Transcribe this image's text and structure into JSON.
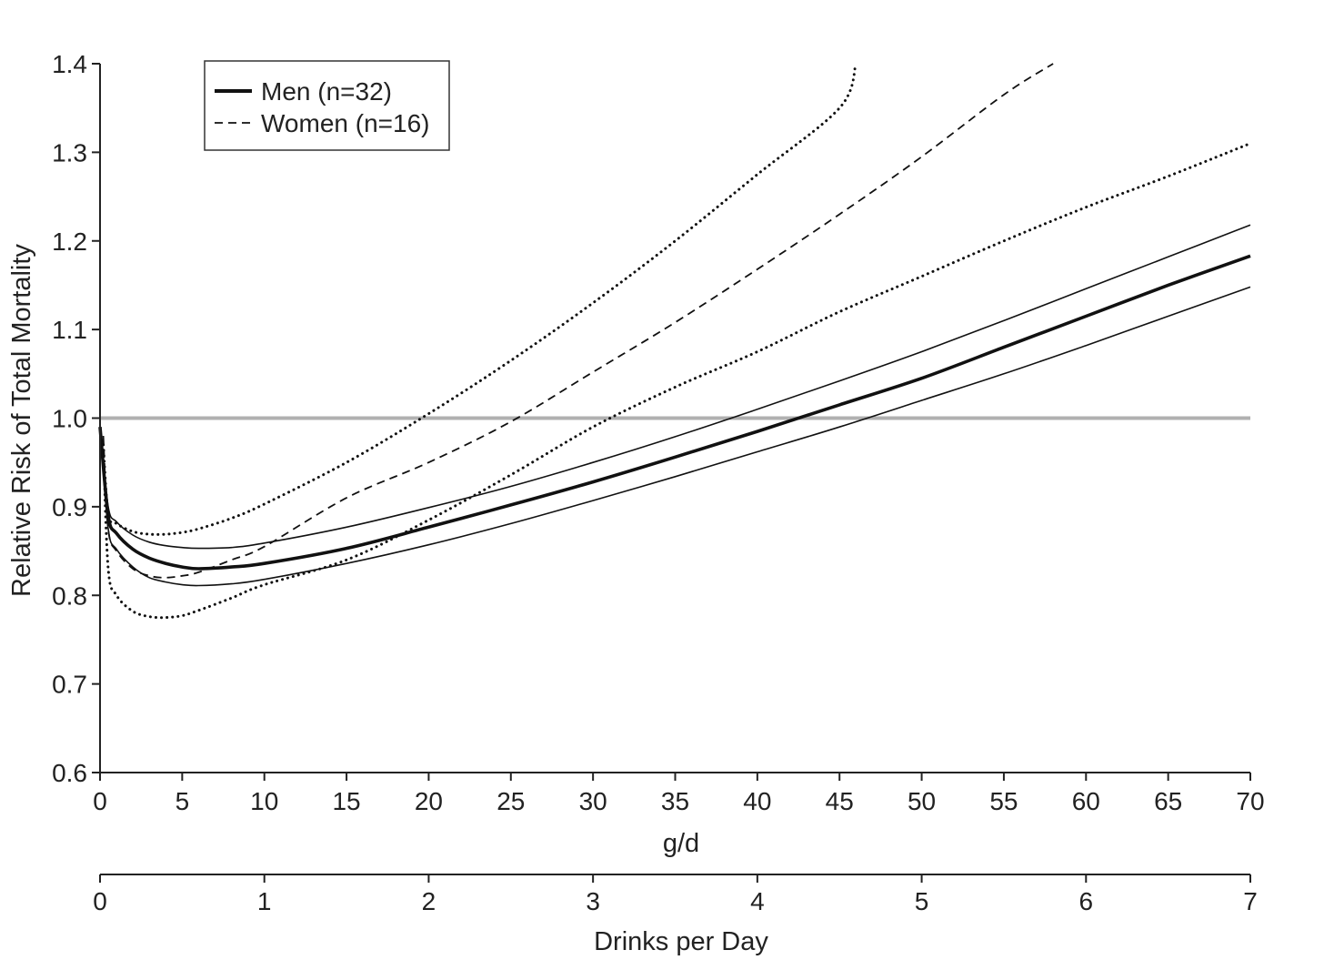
{
  "chart_data": {
    "type": "line",
    "title": "",
    "ylabel": "Relative Risk of Total Mortality",
    "xlabel": "g/d",
    "x2label": "Drinks per Day",
    "xlim": [
      0,
      70
    ],
    "ylim": [
      0.6,
      1.4
    ],
    "xticks": [
      "0",
      "5",
      "10",
      "15",
      "20",
      "25",
      "30",
      "35",
      "40",
      "45",
      "50",
      "55",
      "60",
      "65",
      "70"
    ],
    "yticks": [
      "0.6",
      "0.7",
      "0.8",
      "0.9",
      "1.0",
      "1.1",
      "1.2",
      "1.3",
      "1.4"
    ],
    "x2ticks": [
      "0",
      "1",
      "2",
      "3",
      "4",
      "5",
      "6",
      "7"
    ],
    "reference_line": {
      "y": 1.0,
      "color": "#b0b0b0"
    },
    "legend": {
      "position": "top-left",
      "entries": [
        {
          "label": "Men (n=32)",
          "style": "solid-thick"
        },
        {
          "label": "Women (n=16)",
          "style": "dashed"
        }
      ]
    },
    "series": [
      {
        "name": "Men (n=32)",
        "style": "solid-thick",
        "x": [
          0,
          0.5,
          1,
          2,
          3,
          4,
          5,
          6,
          8,
          10,
          15,
          20,
          25,
          30,
          35,
          40,
          45,
          50,
          55,
          60,
          65,
          70
        ],
        "y": [
          0.99,
          0.89,
          0.87,
          0.852,
          0.842,
          0.836,
          0.832,
          0.83,
          0.832,
          0.836,
          0.853,
          0.877,
          0.902,
          0.928,
          0.956,
          0.985,
          1.015,
          1.045,
          1.08,
          1.115,
          1.15,
          1.183
        ]
      },
      {
        "style": "solid-thin",
        "x": [
          0,
          0.5,
          1,
          2,
          3,
          4,
          5,
          6,
          8,
          10,
          15,
          20,
          25,
          30,
          35,
          40,
          45,
          50,
          55,
          60,
          65,
          70
        ],
        "y": [
          0.99,
          0.9,
          0.883,
          0.868,
          0.86,
          0.856,
          0.854,
          0.853,
          0.854,
          0.859,
          0.877,
          0.899,
          0.923,
          0.95,
          0.979,
          1.01,
          1.042,
          1.075,
          1.11,
          1.146,
          1.182,
          1.218
        ]
      },
      {
        "style": "solid-thin",
        "x": [
          0,
          0.5,
          1,
          2,
          3,
          4,
          5,
          6,
          8,
          10,
          15,
          20,
          25,
          30,
          35,
          40,
          45,
          50,
          55,
          60,
          65,
          70
        ],
        "y": [
          0.99,
          0.875,
          0.852,
          0.832,
          0.82,
          0.815,
          0.812,
          0.811,
          0.813,
          0.818,
          0.836,
          0.857,
          0.881,
          0.907,
          0.934,
          0.962,
          0.99,
          1.02,
          1.05,
          1.082,
          1.115,
          1.148
        ]
      },
      {
        "name": "Women (n=16)",
        "style": "dashed",
        "x": [
          0.2,
          0.5,
          1,
          2,
          3,
          4,
          5,
          6,
          8,
          10,
          15,
          20,
          25,
          30,
          35,
          40,
          45,
          50,
          55,
          58
        ],
        "y": [
          0.98,
          0.875,
          0.85,
          0.83,
          0.822,
          0.82,
          0.822,
          0.826,
          0.84,
          0.855,
          0.91,
          0.95,
          0.996,
          1.052,
          1.108,
          1.168,
          1.23,
          1.295,
          1.365,
          1.4
        ]
      },
      {
        "style": "dotted",
        "x": [
          0.2,
          0.5,
          1,
          2,
          3,
          4,
          5,
          6,
          8,
          10,
          15,
          20,
          25,
          30,
          35,
          40,
          45,
          46
        ],
        "y": [
          0.97,
          0.892,
          0.881,
          0.872,
          0.869,
          0.869,
          0.871,
          0.875,
          0.887,
          0.903,
          0.95,
          1.005,
          1.065,
          1.13,
          1.2,
          1.275,
          1.35,
          1.4
        ]
      },
      {
        "style": "dotted",
        "x": [
          0.2,
          0.5,
          1,
          2,
          3,
          4,
          5,
          6,
          8,
          10,
          15,
          20,
          25,
          30,
          35,
          40,
          45,
          50,
          55,
          60,
          65,
          70
        ],
        "y": [
          0.97,
          0.83,
          0.8,
          0.782,
          0.776,
          0.775,
          0.777,
          0.783,
          0.797,
          0.812,
          0.84,
          0.885,
          0.936,
          0.99,
          1.035,
          1.075,
          1.12,
          1.16,
          1.2,
          1.238,
          1.273,
          1.31
        ]
      }
    ]
  }
}
